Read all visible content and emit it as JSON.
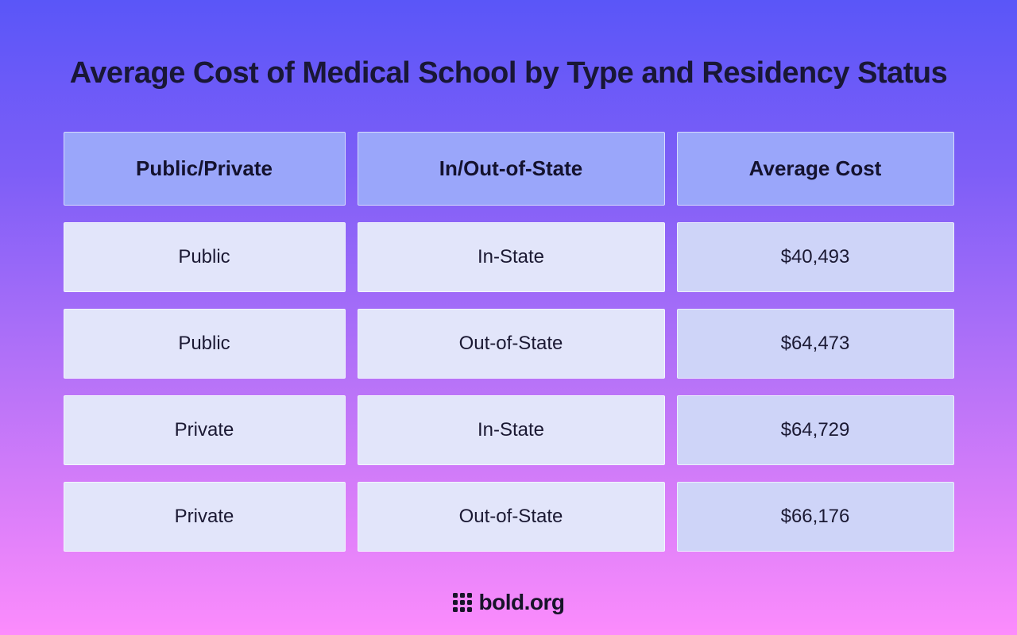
{
  "title": "Average Cost of Medical School by Type and Residency Status",
  "chart_data": {
    "type": "table",
    "title": "Average Cost of Medical School by Type and Residency Status",
    "columns": [
      "Public/Private",
      "In/Out-of-State",
      "Average Cost"
    ],
    "rows": [
      [
        "Public",
        "In-State",
        "$40,493"
      ],
      [
        "Public",
        "Out-of-State",
        "$64,473"
      ],
      [
        "Private",
        "In-State",
        "$64,729"
      ],
      [
        "Private",
        "Out-of-State",
        "$66,176"
      ]
    ],
    "values_numeric": [
      40493,
      64473,
      64729,
      66176
    ],
    "layout_hints": {
      "header_position": "top",
      "grid": "separated-cells",
      "value_column_highlighted": true
    }
  },
  "footer": {
    "logo_icon": "grid-icon",
    "logo_text": "bold.org"
  },
  "colors": {
    "background_gradient_top": "#5a56f8",
    "background_gradient_middle": "#a96ef8",
    "background_gradient_bottom": "#fc8cfc",
    "header_cell": "#9aa6fa",
    "data_cell": "#e2e5fa",
    "cost_cell": "#ced4f8",
    "text_dark": "#191736"
  }
}
